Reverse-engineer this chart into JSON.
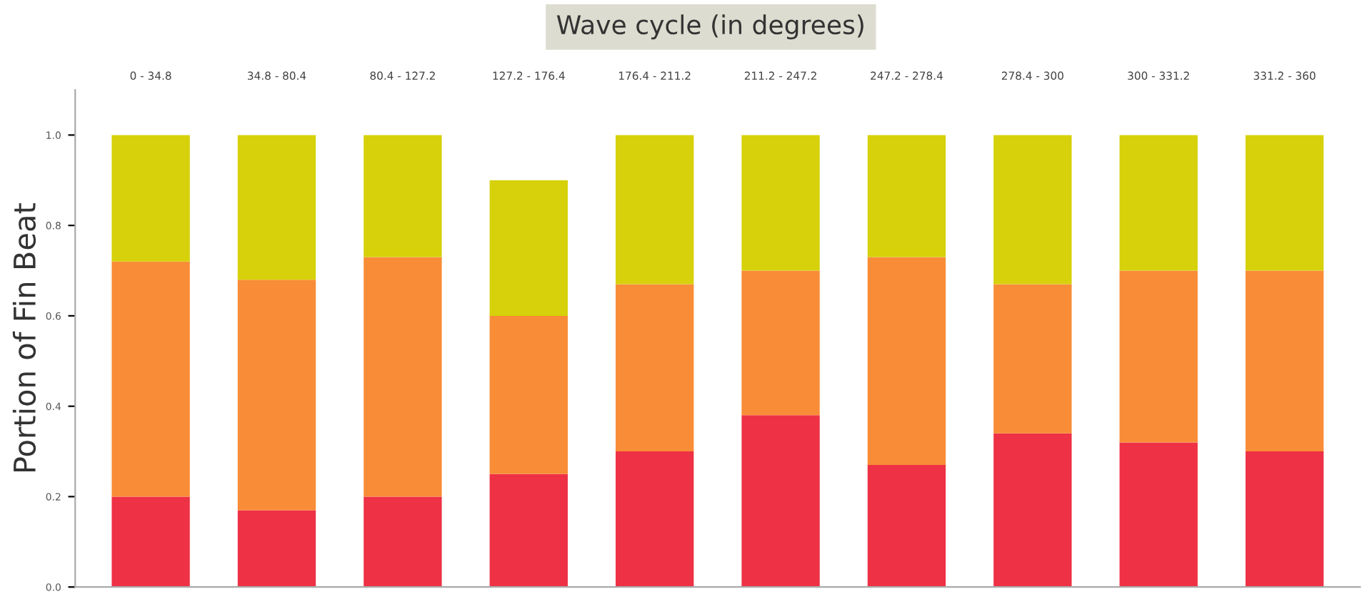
{
  "chart_data": {
    "type": "bar",
    "stacked": true,
    "title": "Wave cycle (in degrees)",
    "ylabel": "Portion of Fin Beat",
    "categories": [
      "0 - 34.8",
      "34.8 - 80.4",
      "80.4 - 127.2",
      "127.2 - 176.4",
      "176.4 - 211.2",
      "211.2 - 247.2",
      "247.2 - 278.4",
      "278.4 - 300",
      "300 - 331.2",
      "331.2 - 360"
    ],
    "series": [
      {
        "color": "#ee3145",
        "values": [
          0.2,
          0.17,
          0.2,
          0.25,
          0.3,
          0.38,
          0.27,
          0.34,
          0.32,
          0.3
        ]
      },
      {
        "color": "#f98c36",
        "values": [
          0.52,
          0.51,
          0.53,
          0.35,
          0.37,
          0.32,
          0.46,
          0.33,
          0.38,
          0.4
        ]
      },
      {
        "color": "#d6d10a",
        "values": [
          0.28,
          0.32,
          0.27,
          0.3,
          0.33,
          0.3,
          0.27,
          0.33,
          0.3,
          0.3
        ]
      }
    ],
    "ylim": [
      0,
      1.1
    ],
    "yticks": [
      {
        "value": 0,
        "label": "0.0"
      },
      0.2,
      0.4,
      0.6,
      0.8,
      {
        "value": 1,
        "label": "1.0"
      }
    ],
    "grid": false,
    "legend": false
  }
}
